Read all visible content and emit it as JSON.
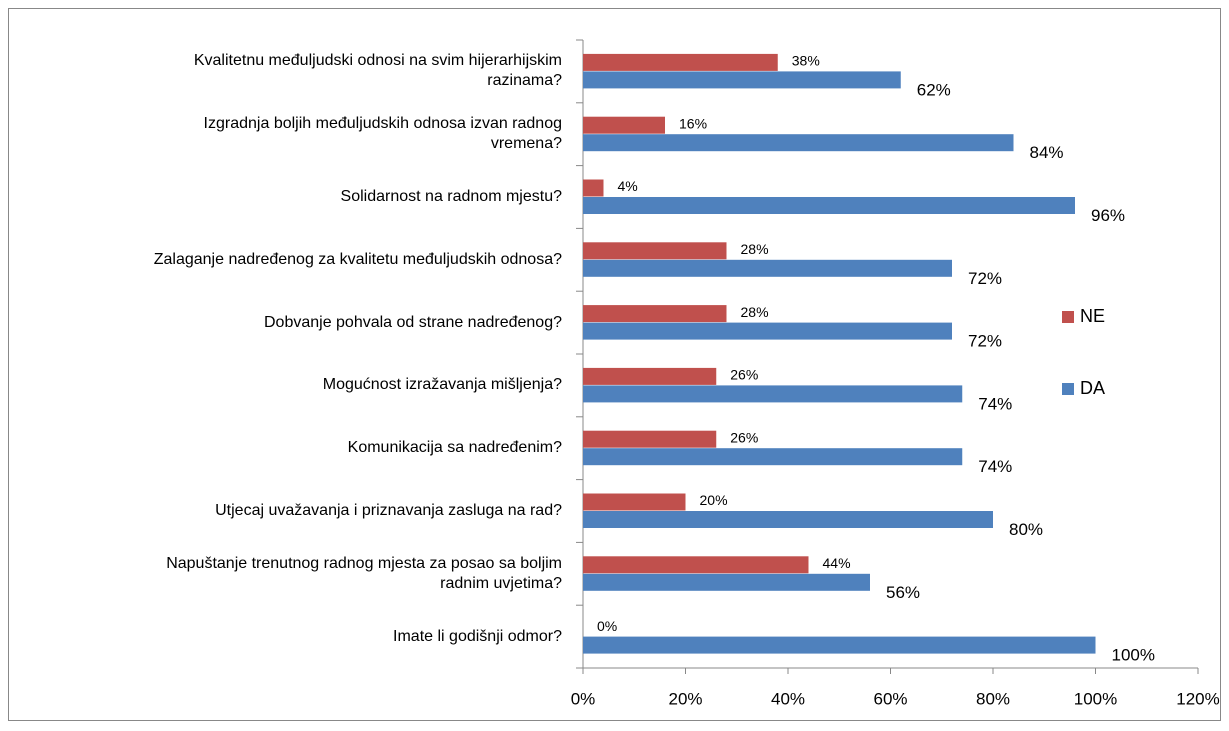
{
  "chart_data": {
    "type": "bar",
    "orientation": "horizontal",
    "categories": [
      "Kvalitetnu međuljudski odnosi na svim hijerarhijskim\nrazinama?",
      "Izgradnja boljih međuljudskih odnosa izvan radnog\nvremena?",
      "Solidarnost na radnom mjestu?",
      "Zalaganje nadređenog za kvalitetu međuljudskih odnosa?",
      "Dobvanje pohvala od strane nadređenog?",
      "Mogućnost izražavanja mišljenja?",
      "Komunikacija sa nadređenim?",
      "Utjecaj uvažavanja i priznavanja zasluga na rad?",
      "Napuštanje trenutnog radnog mjesta za posao sa boljim\nradnim uvjetima?",
      "Imate li godišnji odmor?"
    ],
    "series": [
      {
        "name": "NE",
        "color": "#c0504d",
        "values": [
          38,
          16,
          4,
          28,
          28,
          26,
          26,
          20,
          44,
          0
        ],
        "value_labels": [
          "38%",
          "16%",
          "4%",
          "28%",
          "28%",
          "26%",
          "26%",
          "20%",
          "44%",
          "0%"
        ]
      },
      {
        "name": "DA",
        "color": "#4f81bd",
        "values": [
          62,
          84,
          96,
          72,
          72,
          74,
          74,
          80,
          56,
          100
        ],
        "value_labels": [
          "62%",
          "84%",
          "96%",
          "72%",
          "72%",
          "74%",
          "74%",
          "80%",
          "56%",
          "100%"
        ]
      }
    ],
    "xlim": [
      0,
      120
    ],
    "xticks": [
      {
        "value": 0,
        "label": "0%"
      },
      {
        "value": 20,
        "label": "20%"
      },
      {
        "value": 40,
        "label": "40%"
      },
      {
        "value": 60,
        "label": "60%"
      },
      {
        "value": 80,
        "label": "80%"
      },
      {
        "value": 100,
        "label": "100%"
      },
      {
        "value": 120,
        "label": "120%"
      }
    ],
    "legend": "right",
    "grid": false
  }
}
